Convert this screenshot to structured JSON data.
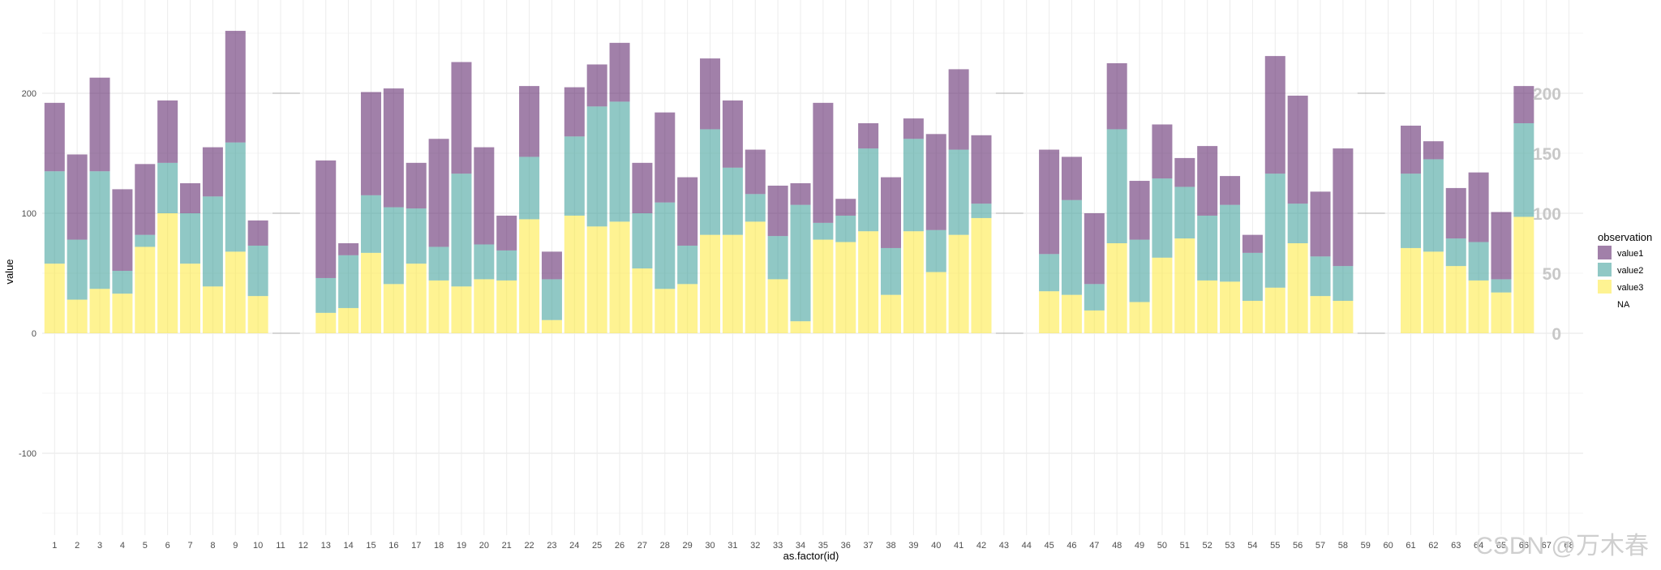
{
  "chart_data": {
    "type": "bar",
    "stacked": true,
    "xlabel": "as.factor(id)",
    "ylabel": "value",
    "ylim": [
      -160,
      250
    ],
    "y_ticks": [
      -100,
      0,
      100,
      200
    ],
    "inner_scale_labels": [
      "0",
      "50",
      "100",
      "150",
      "200"
    ],
    "categories": [
      "1",
      "2",
      "3",
      "4",
      "5",
      "6",
      "7",
      "8",
      "9",
      "10",
      "11",
      "12",
      "13",
      "14",
      "15",
      "16",
      "17",
      "18",
      "19",
      "20",
      "21",
      "22",
      "23",
      "24",
      "25",
      "26",
      "27",
      "28",
      "29",
      "30",
      "31",
      "32",
      "33",
      "34",
      "35",
      "36",
      "37",
      "38",
      "39",
      "40",
      "41",
      "42",
      "43",
      "44",
      "45",
      "46",
      "47",
      "48",
      "49",
      "50",
      "51",
      "52",
      "53",
      "54",
      "55",
      "56",
      "57",
      "58",
      "59",
      "60",
      "61",
      "62",
      "63",
      "64",
      "65",
      "66",
      "67",
      "68"
    ],
    "series": [
      {
        "name": "value3",
        "color": "#fde725",
        "values": [
          58,
          28,
          37,
          33,
          72,
          100,
          58,
          39,
          68,
          31,
          null,
          null,
          17,
          21,
          67,
          41,
          58,
          44,
          39,
          45,
          44,
          95,
          11,
          98,
          89,
          93,
          54,
          37,
          41,
          82,
          82,
          93,
          45,
          10,
          78,
          76,
          85,
          32,
          85,
          51,
          82,
          96,
          null,
          null,
          35,
          32,
          19,
          75,
          26,
          63,
          79,
          44,
          43,
          27,
          38,
          75,
          31,
          27,
          null,
          null,
          71,
          68,
          56,
          44,
          34,
          97,
          null,
          null
        ]
      },
      {
        "name": "value2",
        "color": "#21918c",
        "values": [
          77,
          50,
          98,
          19,
          10,
          42,
          42,
          75,
          91,
          42,
          null,
          null,
          29,
          44,
          48,
          64,
          46,
          28,
          94,
          29,
          25,
          52,
          34,
          66,
          100,
          100,
          46,
          72,
          32,
          88,
          56,
          23,
          36,
          97,
          14,
          22,
          69,
          39,
          77,
          35,
          71,
          12,
          null,
          null,
          31,
          79,
          22,
          95,
          52,
          66,
          43,
          54,
          64,
          40,
          95,
          33,
          33,
          29,
          null,
          null,
          62,
          77,
          23,
          32,
          11,
          78,
          null,
          null
        ]
      },
      {
        "name": "value1",
        "color": "#440154",
        "values": [
          57,
          71,
          78,
          68,
          59,
          52,
          25,
          41,
          93,
          21,
          null,
          null,
          98,
          10,
          86,
          99,
          38,
          90,
          93,
          81,
          29,
          59,
          23,
          41,
          35,
          49,
          42,
          75,
          57,
          59,
          56,
          37,
          42,
          18,
          100,
          14,
          21,
          59,
          17,
          80,
          67,
          57,
          null,
          null,
          87,
          36,
          59,
          55,
          49,
          45,
          24,
          58,
          24,
          15,
          98,
          90,
          54,
          98,
          null,
          null,
          40,
          15,
          42,
          58,
          56,
          31,
          null,
          null
        ]
      }
    ],
    "gaps": [
      "11",
      "12",
      "43",
      "44",
      "59",
      "60",
      "67",
      "68"
    ],
    "legend": {
      "title": "observation",
      "entries": [
        "value1",
        "value2",
        "value3",
        "NA"
      ],
      "position": "right"
    }
  },
  "watermark": "CSDN @万木春"
}
